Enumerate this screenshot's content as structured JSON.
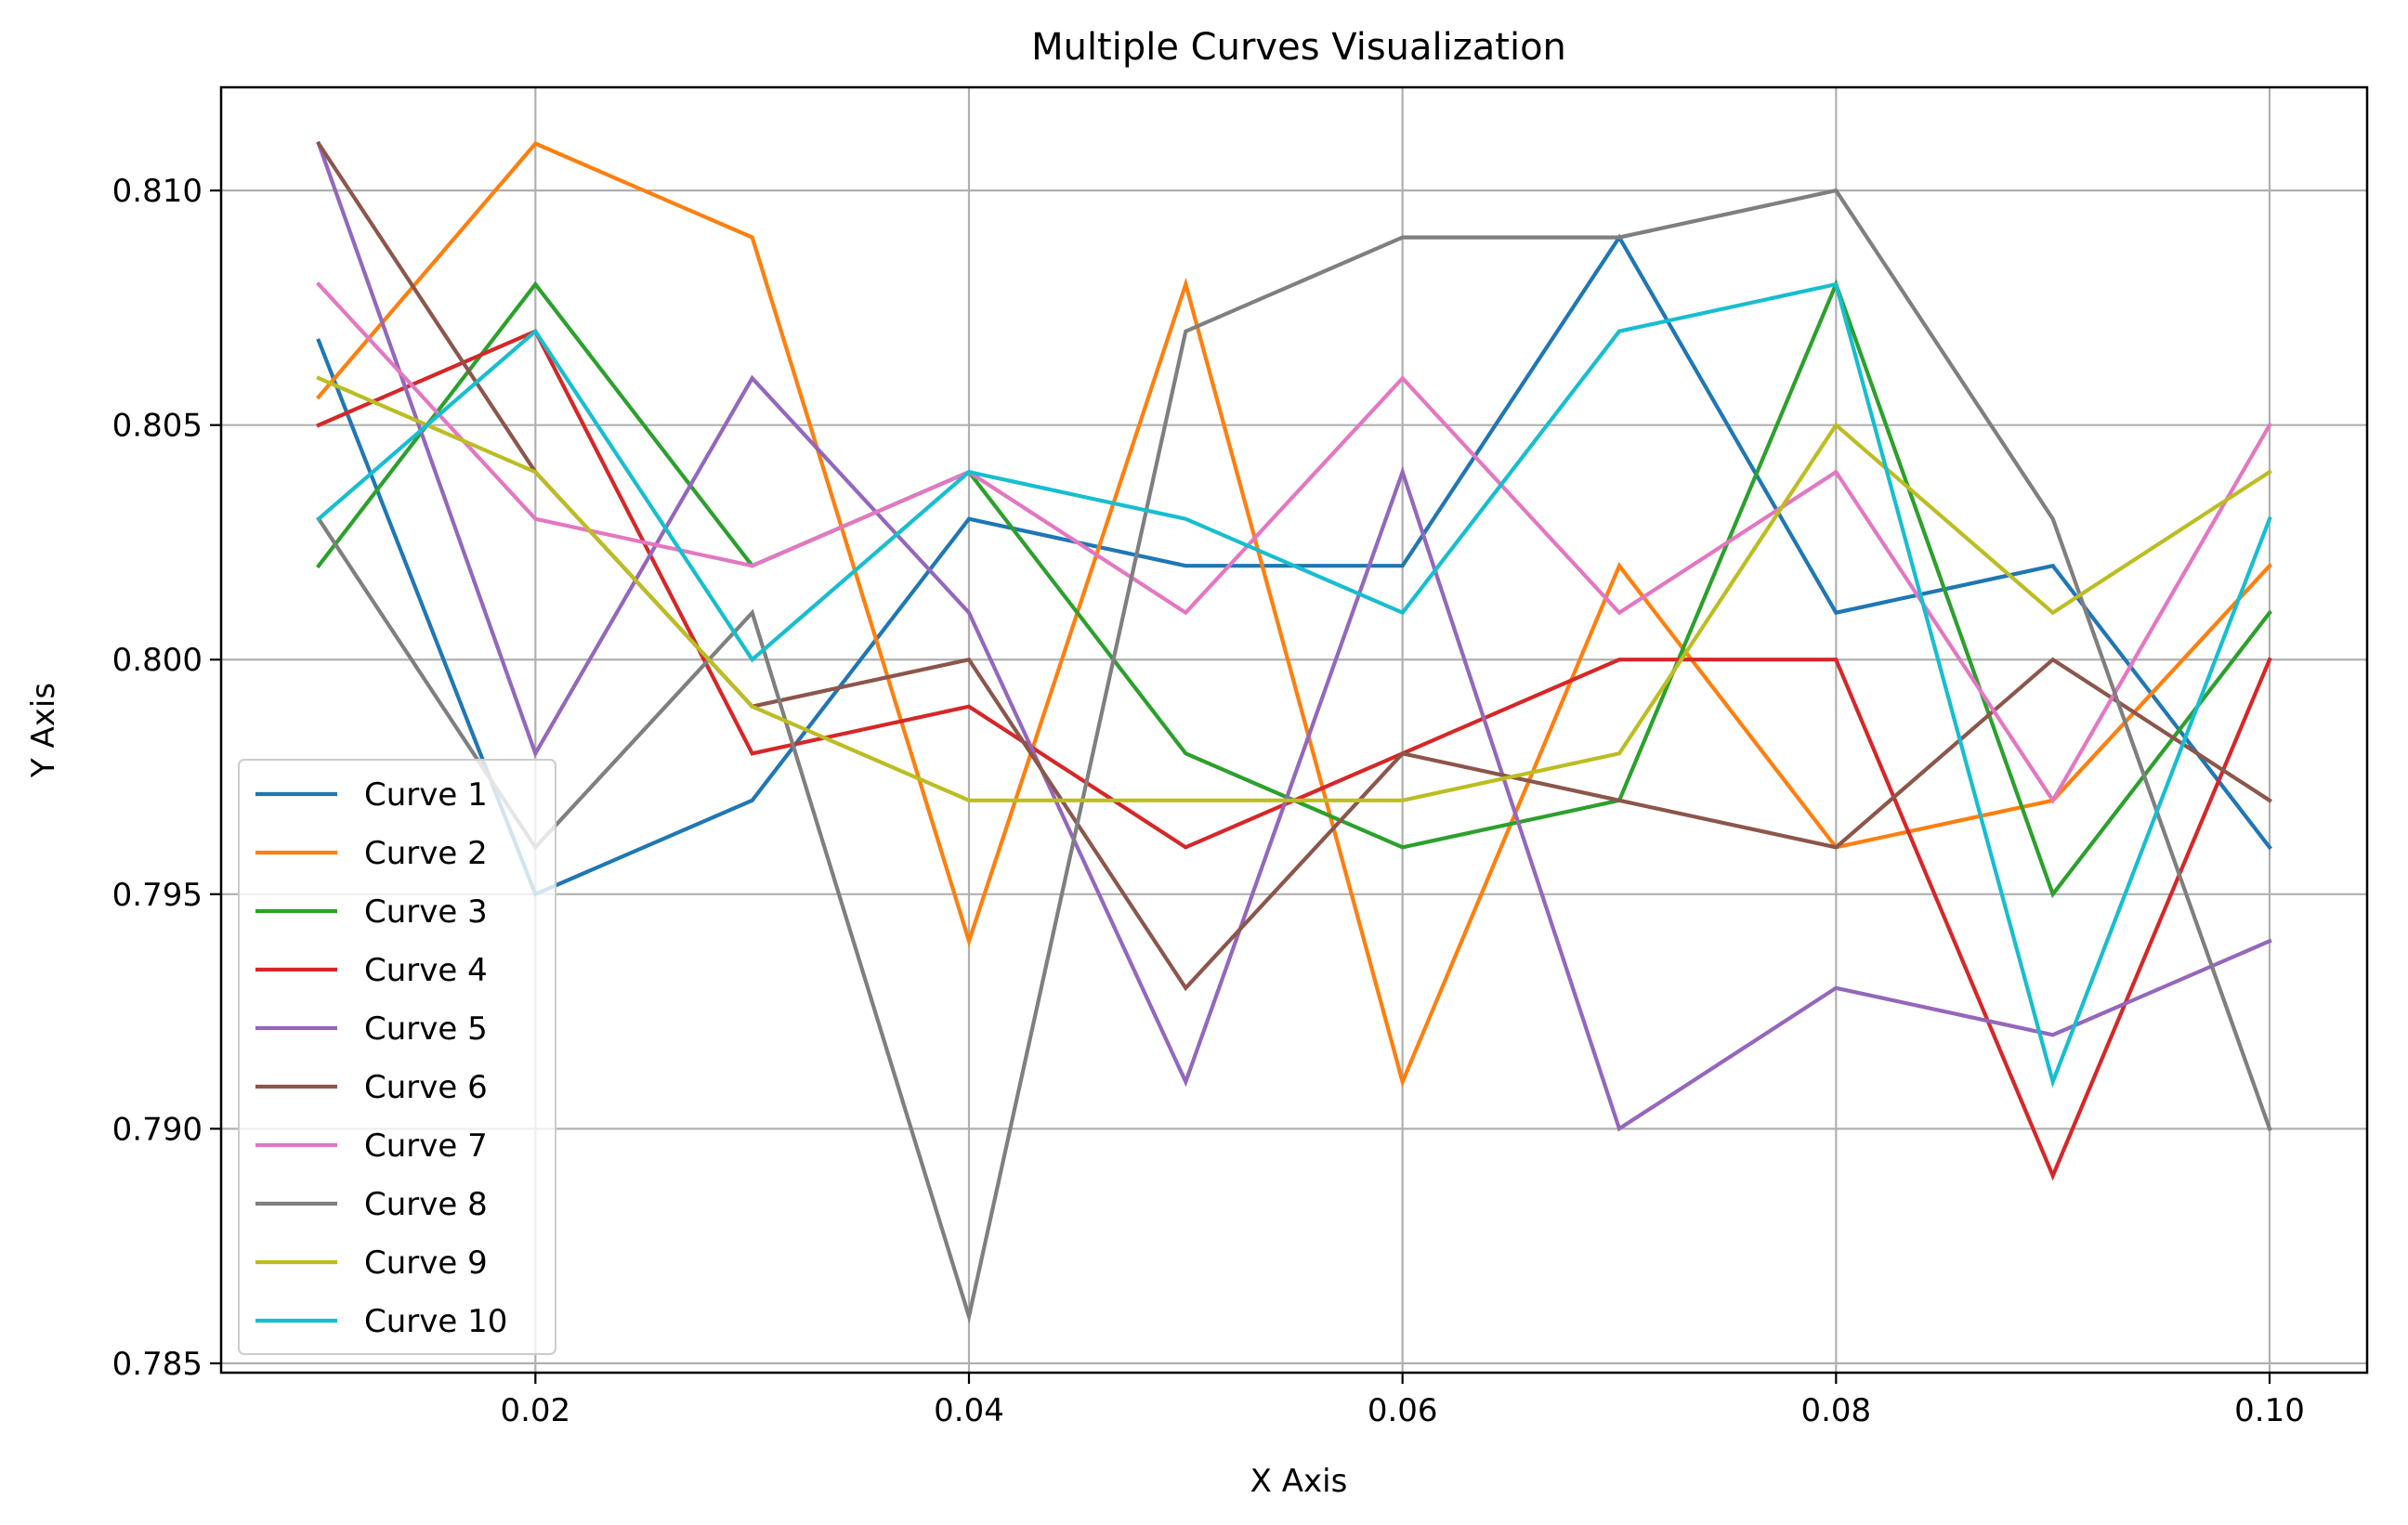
{
  "chart_data": {
    "type": "line",
    "title": "Multiple Curves Visualization",
    "xlabel": "X Axis",
    "ylabel": "Y Axis",
    "xlim": [
      0.0055,
      0.1045
    ],
    "ylim": [
      0.7848,
      0.8122
    ],
    "x_ticks": [
      0.02,
      0.04,
      0.06,
      0.08,
      0.1
    ],
    "x_tick_labels": [
      "0.02",
      "0.04",
      "0.06",
      "0.08",
      "0.10"
    ],
    "y_ticks": [
      0.785,
      0.79,
      0.795,
      0.8,
      0.805,
      0.81
    ],
    "y_tick_labels": [
      "0.785",
      "0.790",
      "0.795",
      "0.800",
      "0.805",
      "0.810"
    ],
    "grid": true,
    "legend_position": "lower-left",
    "x": [
      0.01,
      0.02,
      0.03,
      0.04,
      0.05,
      0.06,
      0.07,
      0.08,
      0.09,
      0.1
    ],
    "series": [
      {
        "name": "Curve 1",
        "color": "#1f77b4",
        "values": [
          0.8068,
          0.795,
          0.797,
          0.803,
          0.802,
          0.802,
          0.809,
          0.801,
          0.802,
          0.796
        ]
      },
      {
        "name": "Curve 2",
        "color": "#ff7f0e",
        "values": [
          0.8056,
          0.811,
          0.809,
          0.794,
          0.808,
          0.791,
          0.802,
          0.796,
          0.797,
          0.802
        ]
      },
      {
        "name": "Curve 3",
        "color": "#2ca02c",
        "values": [
          0.802,
          0.808,
          0.802,
          0.804,
          0.798,
          0.796,
          0.797,
          0.808,
          0.795,
          0.801
        ]
      },
      {
        "name": "Curve 4",
        "color": "#d62728",
        "values": [
          0.805,
          0.807,
          0.798,
          0.799,
          0.796,
          0.798,
          0.8,
          0.8,
          0.789,
          0.8
        ]
      },
      {
        "name": "Curve 5",
        "color": "#9467bd",
        "values": [
          0.811,
          0.798,
          0.806,
          0.801,
          0.791,
          0.804,
          0.79,
          0.793,
          0.792,
          0.794
        ]
      },
      {
        "name": "Curve 6",
        "color": "#8c564b",
        "values": [
          0.811,
          0.804,
          0.799,
          0.8,
          0.793,
          0.798,
          0.797,
          0.796,
          0.8,
          0.797
        ]
      },
      {
        "name": "Curve 7",
        "color": "#e377c2",
        "values": [
          0.808,
          0.803,
          0.802,
          0.804,
          0.801,
          0.806,
          0.801,
          0.804,
          0.797,
          0.805
        ]
      },
      {
        "name": "Curve 8",
        "color": "#7f7f7f",
        "values": [
          0.803,
          0.796,
          0.801,
          0.786,
          0.807,
          0.809,
          0.809,
          0.81,
          0.803,
          0.79
        ]
      },
      {
        "name": "Curve 9",
        "color": "#bcbd22",
        "values": [
          0.806,
          0.804,
          0.799,
          0.797,
          0.797,
          0.797,
          0.798,
          0.805,
          0.801,
          0.804
        ]
      },
      {
        "name": "Curve 10",
        "color": "#17becf",
        "values": [
          0.803,
          0.807,
          0.8,
          0.804,
          0.803,
          0.801,
          0.807,
          0.808,
          0.791,
          0.803
        ]
      }
    ]
  }
}
